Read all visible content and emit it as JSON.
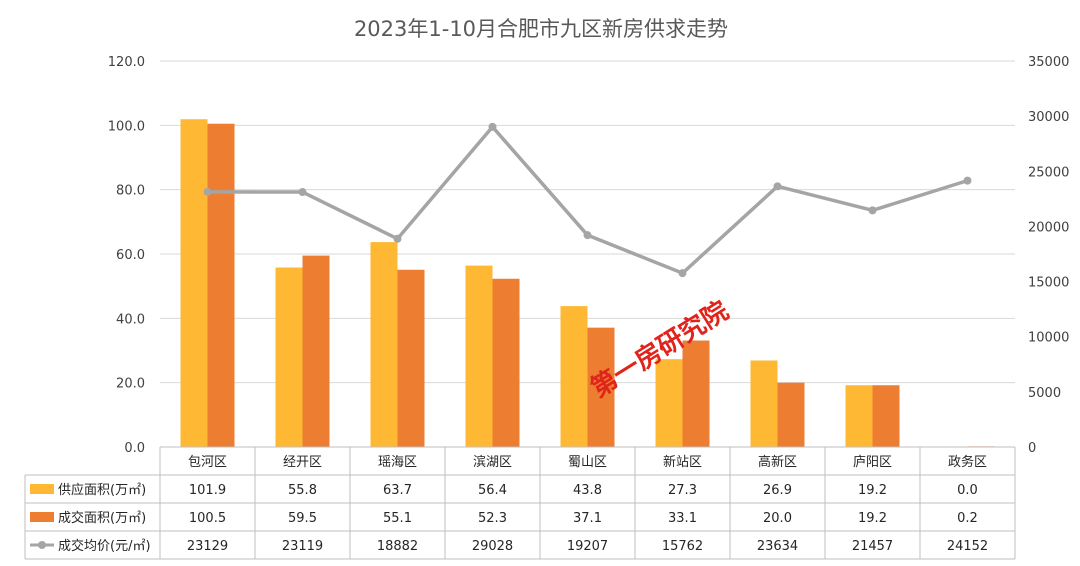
{
  "chart_data": {
    "type": "bar",
    "title": "2023年1-10月合肥市九区新房供求走势",
    "categories": [
      "包河区",
      "经开区",
      "瑶海区",
      "滨湖区",
      "蜀山区",
      "新站区",
      "高新区",
      "庐阳区",
      "政务区"
    ],
    "series": [
      {
        "name": "供应面积(万㎡)",
        "type": "bar",
        "axis": "left",
        "color": "#FFB833",
        "values": [
          101.9,
          55.8,
          63.7,
          56.4,
          43.8,
          27.3,
          26.9,
          19.2,
          0.0
        ],
        "labels": [
          "101.9",
          "55.8",
          "63.7",
          "56.4",
          "43.8",
          "27.3",
          "26.9",
          "19.2",
          "0.0"
        ]
      },
      {
        "name": "成交面积(万㎡)",
        "type": "bar",
        "axis": "left",
        "color": "#ED7D31",
        "values": [
          100.5,
          59.5,
          55.1,
          52.3,
          37.1,
          33.1,
          20.0,
          19.2,
          0.2
        ],
        "labels": [
          "100.5",
          "59.5",
          "55.1",
          "52.3",
          "37.1",
          "33.1",
          "20.0",
          "19.2",
          "0.2"
        ]
      },
      {
        "name": "成交均价(元/㎡)",
        "type": "line",
        "axis": "right",
        "color": "#A5A5A5",
        "values": [
          23129,
          23119,
          18882,
          29028,
          19207,
          15762,
          23634,
          21457,
          24152
        ],
        "labels": [
          "23129",
          "23119",
          "18882",
          "29028",
          "19207",
          "15762",
          "23634",
          "21457",
          "24152"
        ]
      }
    ],
    "y_left": {
      "min": 0,
      "max": 120,
      "ticks": [
        "0.0",
        "20.0",
        "40.0",
        "60.0",
        "80.0",
        "100.0",
        "120.0"
      ]
    },
    "y_right": {
      "min": 0,
      "max": 35000,
      "ticks": [
        "0",
        "5000",
        "10000",
        "15000",
        "20000",
        "25000",
        "30000",
        "35000"
      ]
    },
    "grid": true,
    "legend": "data-table",
    "watermark": "第一房研究院"
  }
}
